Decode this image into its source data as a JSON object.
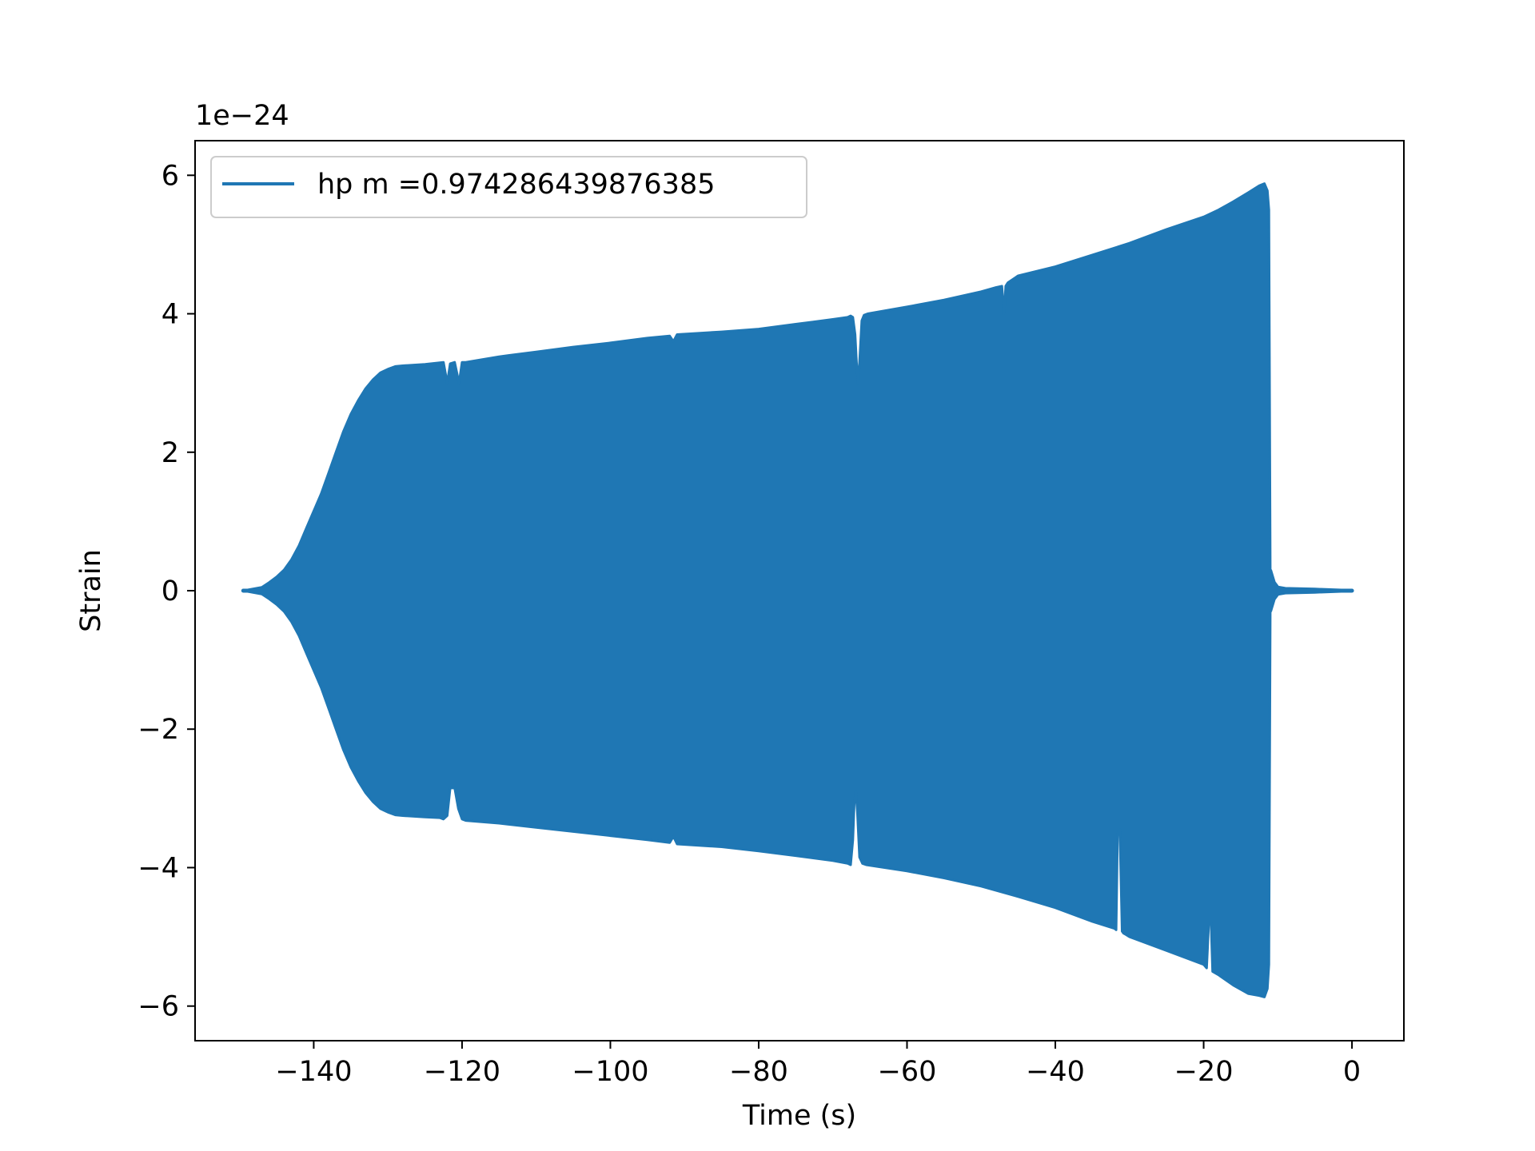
{
  "chart_data": {
    "type": "line",
    "title": "",
    "xlabel": "Time (s)",
    "ylabel": "Strain",
    "offset_text": "1e−24",
    "xlim": [
      -156,
      7
    ],
    "ylim": [
      -6.5,
      6.5
    ],
    "xticks": [
      -140,
      -120,
      -100,
      -80,
      -60,
      -40,
      -20,
      0
    ],
    "xtick_labels": [
      "−140",
      "−120",
      "−100",
      "−80",
      "−60",
      "−40",
      "−20",
      "0"
    ],
    "yticks": [
      -6,
      -4,
      -2,
      0,
      2,
      4,
      6
    ],
    "ytick_labels": [
      "−6",
      "−4",
      "−2",
      "0",
      "2",
      "4",
      "6"
    ],
    "grid": false,
    "legend_position": "top-left",
    "series": [
      {
        "name": "hp m =0.974286439876385",
        "color": "#1f77b4",
        "upper_envelope": {
          "t": [
            -149.5,
            -147,
            -146,
            -145,
            -144,
            -143,
            -142,
            -141,
            -140,
            -139,
            -138,
            -137,
            -136,
            -135,
            -134,
            -133,
            -132,
            -131,
            -130,
            -129,
            -128,
            -125,
            -122.5,
            -122,
            -121.6,
            -121,
            -120.4,
            -120,
            -119.5,
            -115,
            -110,
            -105,
            -100,
            -95,
            -92,
            -91.5,
            -91,
            -85,
            -80,
            -75,
            -70,
            -68,
            -67.6,
            -67.3,
            -67.0,
            -66.8,
            -66.6,
            -66.4,
            -66.1,
            -65.8,
            -65.3,
            -60,
            -55,
            -50,
            -48,
            -47.2,
            -46.9,
            -46.7,
            -46.4,
            -45,
            -40,
            -35,
            -30,
            -25,
            -20,
            -18,
            -16,
            -14,
            -12.5,
            -11.8,
            -11.4,
            -11.2,
            -11.0
          ],
          "y": [
            0,
            0.05,
            0.12,
            0.2,
            0.3,
            0.45,
            0.65,
            0.9,
            1.15,
            1.4,
            1.7,
            2.0,
            2.3,
            2.55,
            2.75,
            2.92,
            3.05,
            3.15,
            3.2,
            3.24,
            3.25,
            3.27,
            3.3,
            3.0,
            3.28,
            3.3,
            3.0,
            3.3,
            3.3,
            3.38,
            3.45,
            3.52,
            3.58,
            3.65,
            3.68,
            3.6,
            3.7,
            3.74,
            3.78,
            3.85,
            3.92,
            3.95,
            3.97,
            3.95,
            3.7,
            3.3,
            3.0,
            3.3,
            3.9,
            3.98,
            4.0,
            4.1,
            4.2,
            4.32,
            4.38,
            4.4,
            4.0,
            4.4,
            4.45,
            4.55,
            4.68,
            4.85,
            5.02,
            5.22,
            5.4,
            5.5,
            5.62,
            5.75,
            5.85,
            5.88,
            5.78,
            5.5,
            0
          ],
          "close": true
        },
        "lower_envelope": {
          "t": [
            -149.5,
            -147,
            -146,
            -145,
            -144,
            -143,
            -142,
            -141,
            -140,
            -139,
            -138,
            -137,
            -136,
            -135,
            -134,
            -133,
            -132,
            -131,
            -130,
            -129,
            -128,
            -125,
            -123,
            -122.5,
            -122,
            -121.6,
            -121,
            -120.5,
            -120,
            -119.5,
            -115,
            -110,
            -105,
            -100,
            -95,
            -92,
            -91.5,
            -91,
            -85,
            -80,
            -75,
            -70,
            -68,
            -67.6,
            -67.3,
            -67.1,
            -66.9,
            -66.7,
            -66.4,
            -66,
            -65.5,
            -60,
            -55,
            -50,
            -45,
            -40,
            -35,
            -32,
            -31.8,
            -31.6,
            -31.3,
            -31.0,
            -30.8,
            -30.6,
            -30,
            -25,
            -20,
            -19.6,
            -19.3,
            -19.0,
            -18.8,
            -18,
            -16,
            -14,
            -12.5,
            -11.8,
            -11.4,
            -11.2,
            -11.0
          ],
          "y": [
            0,
            -0.05,
            -0.12,
            -0.2,
            -0.3,
            -0.45,
            -0.65,
            -0.9,
            -1.15,
            -1.4,
            -1.7,
            -2.0,
            -2.3,
            -2.55,
            -2.75,
            -2.92,
            -3.05,
            -3.15,
            -3.2,
            -3.24,
            -3.25,
            -3.27,
            -3.28,
            -3.3,
            -3.25,
            -2.85,
            -2.85,
            -3.15,
            -3.3,
            -3.32,
            -3.36,
            -3.42,
            -3.48,
            -3.54,
            -3.6,
            -3.64,
            -3.55,
            -3.66,
            -3.7,
            -3.76,
            -3.83,
            -3.9,
            -3.94,
            -3.96,
            -3.6,
            -3.05,
            -2.9,
            -3.2,
            -3.85,
            -3.94,
            -3.96,
            -4.05,
            -4.15,
            -4.27,
            -4.42,
            -4.58,
            -4.78,
            -4.88,
            -4.9,
            -3.5,
            -3.45,
            -4.92,
            -4.95,
            -4.96,
            -5.0,
            -5.2,
            -5.4,
            -5.45,
            -4.8,
            -4.8,
            -5.5,
            -5.55,
            -5.7,
            -5.82,
            -5.85,
            -5.87,
            -5.75,
            -5.4,
            0
          ],
          "close": true
        },
        "ringdown": {
          "t": [
            -11.0,
            -10.5,
            -10,
            -9,
            -5,
            0
          ],
          "amplitude": [
            0.3,
            0.12,
            0.05,
            0.03,
            0.02,
            0.0
          ]
        },
        "t_start": -149.5,
        "t_end": 0
      }
    ]
  }
}
